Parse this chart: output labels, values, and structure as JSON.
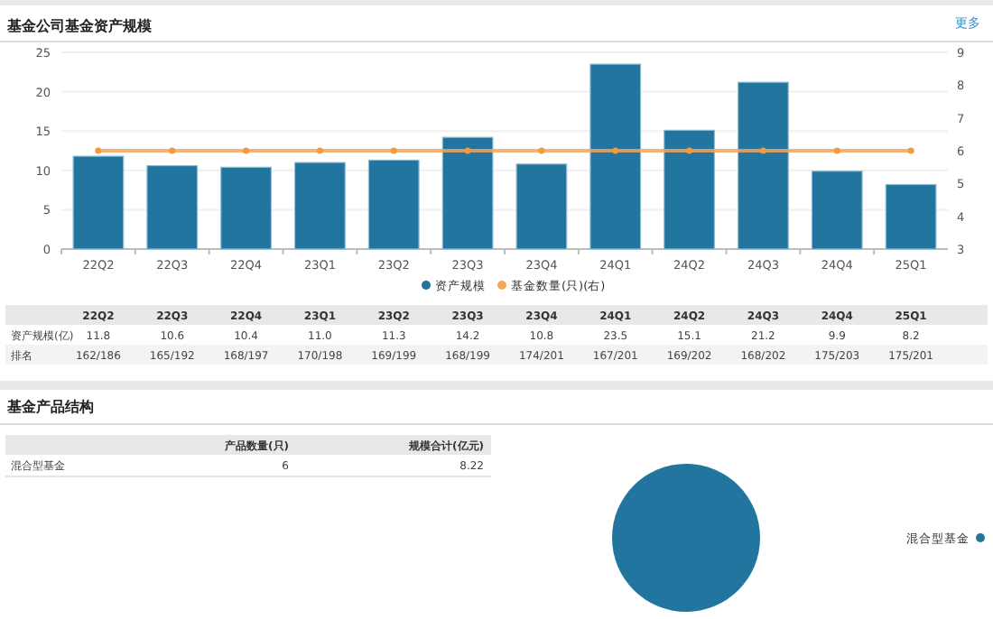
{
  "chart_data": [
    {
      "type": "bar",
      "title": "基金公司基金资产规模",
      "annotations": [
        "更多",
        "资产规模(亿)",
        "排名",
        "162/186",
        "165/192",
        "168/197",
        "170/198",
        "169/199",
        "168/199",
        "174/201",
        "167/201",
        "169/202",
        "168/202",
        "175/203",
        "175/201"
      ],
      "categories": [
        "22Q2",
        "22Q3",
        "22Q4",
        "23Q1",
        "23Q2",
        "23Q3",
        "23Q4",
        "24Q1",
        "24Q2",
        "24Q3",
        "24Q4",
        "25Q1"
      ],
      "series": [
        {
          "name": "资产规模",
          "type": "bar",
          "color": "#21759f",
          "values": [
            11.8,
            10.6,
            10.4,
            11.0,
            11.3,
            14.2,
            10.8,
            23.5,
            15.1,
            21.2,
            9.9,
            8.2
          ],
          "value_labels": [
            "11.8",
            "10.6",
            "10.4",
            "11.0",
            "11.3",
            "14.2",
            "10.8",
            "23.5",
            "15.1",
            "21.2",
            "9.9",
            "8.2"
          ]
        },
        {
          "name": "基金数量(只)(右)",
          "type": "line",
          "axis": "y2",
          "color": "#f5a55c",
          "values": [
            6,
            6,
            6,
            6,
            6,
            6,
            6,
            6,
            6,
            6,
            6,
            6
          ]
        }
      ],
      "ylim": [
        0,
        25
      ],
      "yticks": [
        0,
        5,
        10,
        15,
        20,
        25
      ],
      "y2lim": [
        3,
        9
      ],
      "y2ticks": [
        3,
        4,
        5,
        6,
        7,
        8,
        9
      ],
      "grid": "y",
      "legend": "bottom",
      "marker": "circle"
    },
    {
      "type": "other",
      "title": "基金产品结构",
      "annotations": [
        "产品数量(只)",
        "规模合计(亿元)",
        "混合型基金",
        "6",
        "8.22"
      ]
    },
    {
      "type": "pie",
      "categories": [
        "混合型基金"
      ],
      "values": [
        100
      ],
      "colors": [
        "#21759f"
      ],
      "legend": "right"
    }
  ]
}
